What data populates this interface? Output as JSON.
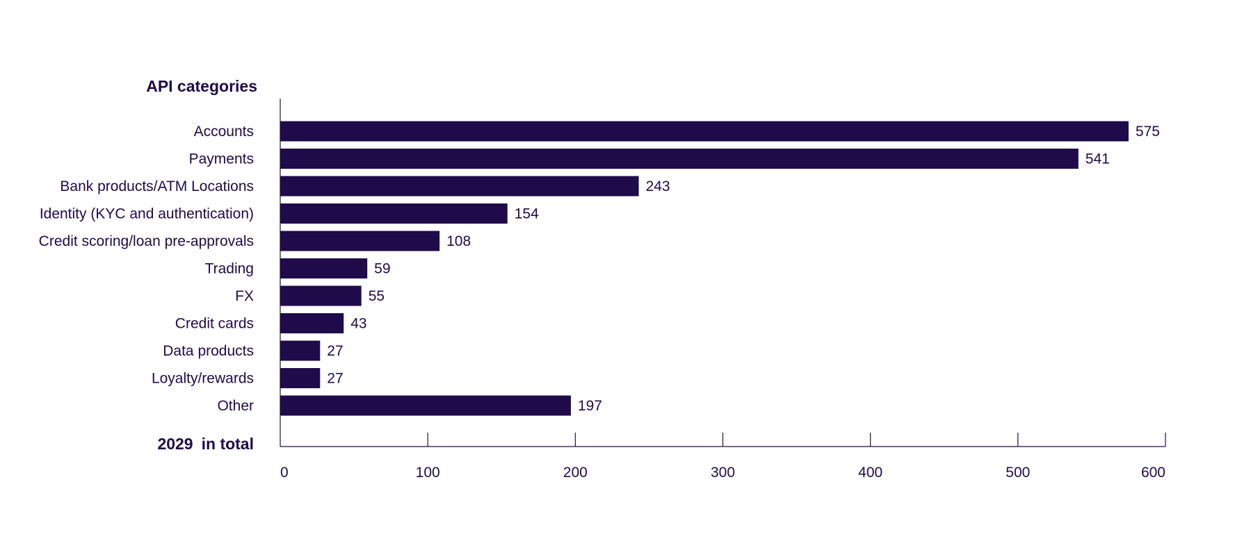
{
  "chart_data": {
    "type": "bar",
    "orientation": "horizontal",
    "category_heading": "API categories",
    "categories": [
      "Accounts",
      "Payments",
      "Bank products/ATM Locations",
      "Identity (KYC and authentication)",
      "Credit scoring/loan pre-approvals",
      "Trading",
      "FX",
      "Credit cards",
      "Data products",
      "Loyalty/rewards",
      "Other"
    ],
    "values": [
      575,
      541,
      243,
      154,
      108,
      59,
      55,
      43,
      27,
      27,
      197
    ],
    "total_value": "2029",
    "total_suffix": "in total",
    "xlim": [
      0,
      600
    ],
    "xticks": [
      0,
      100,
      200,
      300,
      400,
      500,
      600
    ],
    "grid": false,
    "bar_color": "#1f0a4a",
    "axis_color": "#1f0a4a"
  }
}
